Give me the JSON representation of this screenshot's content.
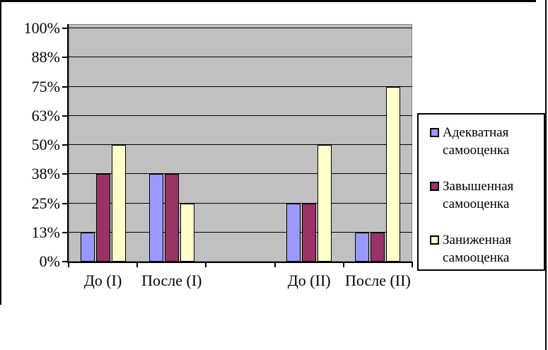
{
  "chart_data": {
    "type": "bar",
    "title": "",
    "categories": [
      "До (I)",
      "После (I)",
      "",
      "До (II)",
      "После (II)"
    ],
    "series": [
      {
        "name": "Адекватная самооценка",
        "color": "#9999FF",
        "values": [
          12.5,
          37.5,
          null,
          25,
          12.5
        ]
      },
      {
        "name": "Завышенная самооценка",
        "color": "#993366",
        "values": [
          37.5,
          37.5,
          null,
          25,
          12.5
        ]
      },
      {
        "name": "Заниженная самооценка",
        "color": "#FFFFCC",
        "values": [
          50,
          25,
          null,
          50,
          75
        ]
      }
    ],
    "y_axis": {
      "min": 0,
      "max": 100,
      "tick_values": [
        0,
        12.5,
        25,
        37.5,
        50,
        62.5,
        75,
        87.5,
        100
      ],
      "tick_labels": [
        "0%",
        "13%",
        "25%",
        "38%",
        "50%",
        "63%",
        "75%",
        "88%",
        "100%"
      ]
    },
    "grid": true,
    "legend_position": "right",
    "colors": {
      "plot_bg": "#C0C0C0",
      "plot_border": "#848284",
      "gridline": "#000000",
      "axis": "#000000",
      "legend_bg": "#FFFFFF",
      "legend_border": "#000000",
      "outer_border": "#000000"
    }
  }
}
